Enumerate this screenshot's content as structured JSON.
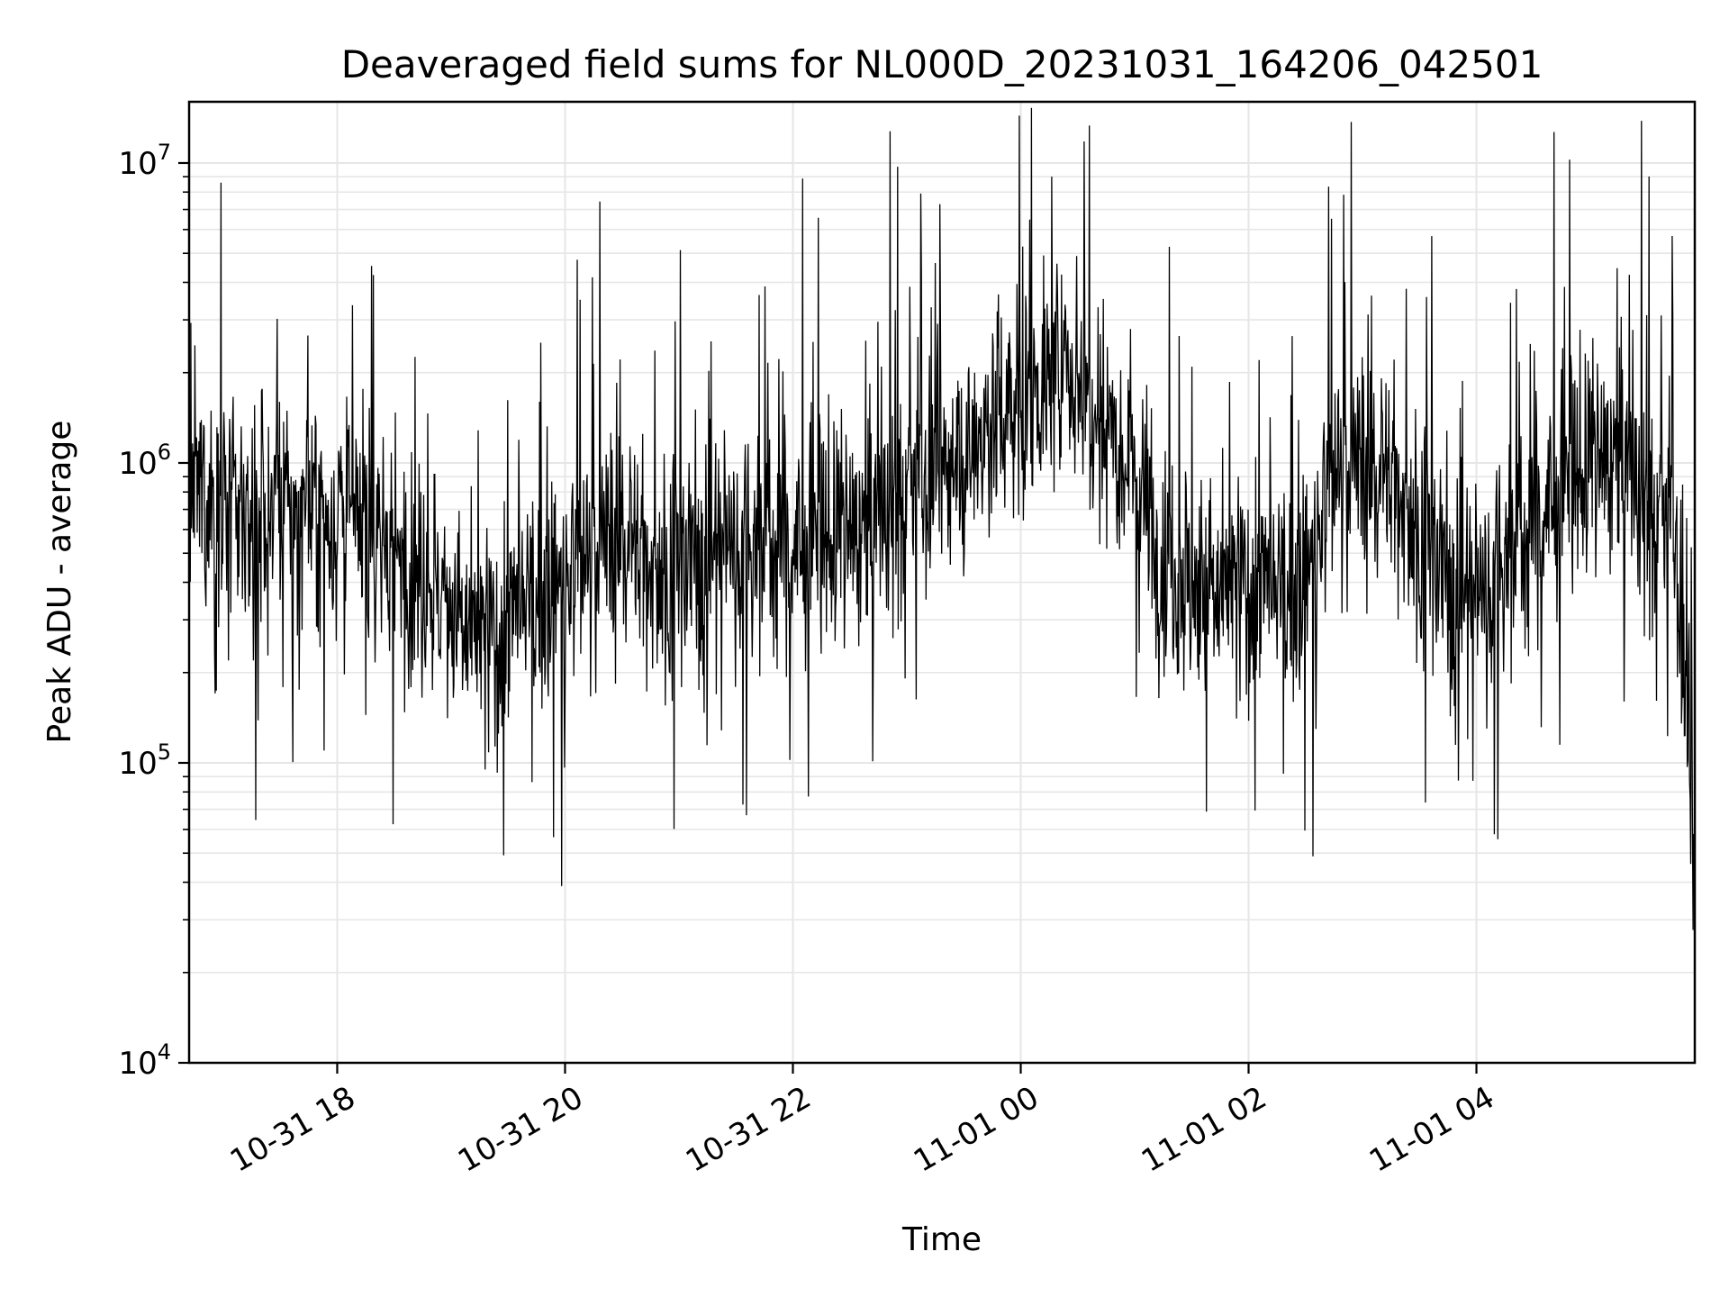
{
  "chart_data": {
    "type": "line",
    "title": "Deaveraged field sums for NL000D_20231031_164206_042501",
    "xlabel": "Time",
    "ylabel": "Peak ADU - average",
    "x_range": [
      "2023-10-31 16:42",
      "2023-11-01 05:55"
    ],
    "x_ticks": [
      {
        "value": "2023-10-31 18:00",
        "label": "10-31 18"
      },
      {
        "value": "2023-10-31 20:00",
        "label": "10-31 20"
      },
      {
        "value": "2023-10-31 22:00",
        "label": "10-31 22"
      },
      {
        "value": "2023-11-01 00:00",
        "label": "11-01 00"
      },
      {
        "value": "2023-11-01 02:00",
        "label": "11-01 02"
      },
      {
        "value": "2023-11-01 04:00",
        "label": "11-01 04"
      }
    ],
    "y_scale": "log",
    "ylim": [
      10000,
      16000000
    ],
    "y_ticks": [
      {
        "value": 10000,
        "base": "10",
        "exp": "4"
      },
      {
        "value": 100000,
        "base": "10",
        "exp": "5"
      },
      {
        "value": 1000000,
        "base": "10",
        "exp": "6"
      },
      {
        "value": 10000000,
        "base": "10",
        "exp": "7"
      }
    ],
    "grid": true,
    "series": [
      {
        "color": "#000000",
        "x": [
          "2023-10-31 16:42",
          "2023-10-31 17:00",
          "2023-10-31 17:15",
          "2023-10-31 17:30",
          "2023-10-31 17:45",
          "2023-10-31 18:00",
          "2023-10-31 18:15",
          "2023-10-31 18:30",
          "2023-10-31 18:45",
          "2023-10-31 19:00",
          "2023-10-31 19:15",
          "2023-10-31 19:30",
          "2023-10-31 19:45",
          "2023-10-31 20:00",
          "2023-10-31 20:15",
          "2023-10-31 20:30",
          "2023-10-31 20:45",
          "2023-10-31 21:00",
          "2023-10-31 21:15",
          "2023-10-31 21:30",
          "2023-10-31 21:45",
          "2023-10-31 22:00",
          "2023-10-31 22:15",
          "2023-10-31 22:30",
          "2023-10-31 22:45",
          "2023-10-31 23:00",
          "2023-10-31 23:15",
          "2023-10-31 23:30",
          "2023-10-31 23:45",
          "2023-11-01 00:00",
          "2023-11-01 00:15",
          "2023-11-01 00:30",
          "2023-11-01 00:45",
          "2023-11-01 01:00",
          "2023-11-01 01:15",
          "2023-11-01 01:30",
          "2023-11-01 01:45",
          "2023-11-01 02:00",
          "2023-11-01 02:15",
          "2023-11-01 02:30",
          "2023-11-01 02:45",
          "2023-11-01 03:00",
          "2023-11-01 03:15",
          "2023-11-01 03:30",
          "2023-11-01 03:45",
          "2023-11-01 04:00",
          "2023-11-01 04:15",
          "2023-11-01 04:30",
          "2023-11-01 04:45",
          "2023-11-01 05:00",
          "2023-11-01 05:15",
          "2023-11-01 05:30",
          "2023-11-01 05:45",
          "2023-11-01 05:55"
        ],
        "y": [
          800000,
          700000,
          650000,
          680000,
          700000,
          650000,
          600000,
          500000,
          450000,
          300000,
          250000,
          280000,
          350000,
          400000,
          500000,
          600000,
          450000,
          450000,
          500000,
          550000,
          550000,
          500000,
          550000,
          600000,
          650000,
          800000,
          900000,
          1000000,
          1400000,
          1600000,
          1900000,
          2000000,
          1500000,
          1000000,
          500000,
          400000,
          350000,
          400000,
          350000,
          400000,
          900000,
          1000000,
          900000,
          600000,
          400000,
          350000,
          500000,
          600000,
          800000,
          1000000,
          1100000,
          700000,
          600000,
          40000
        ]
      }
    ]
  }
}
